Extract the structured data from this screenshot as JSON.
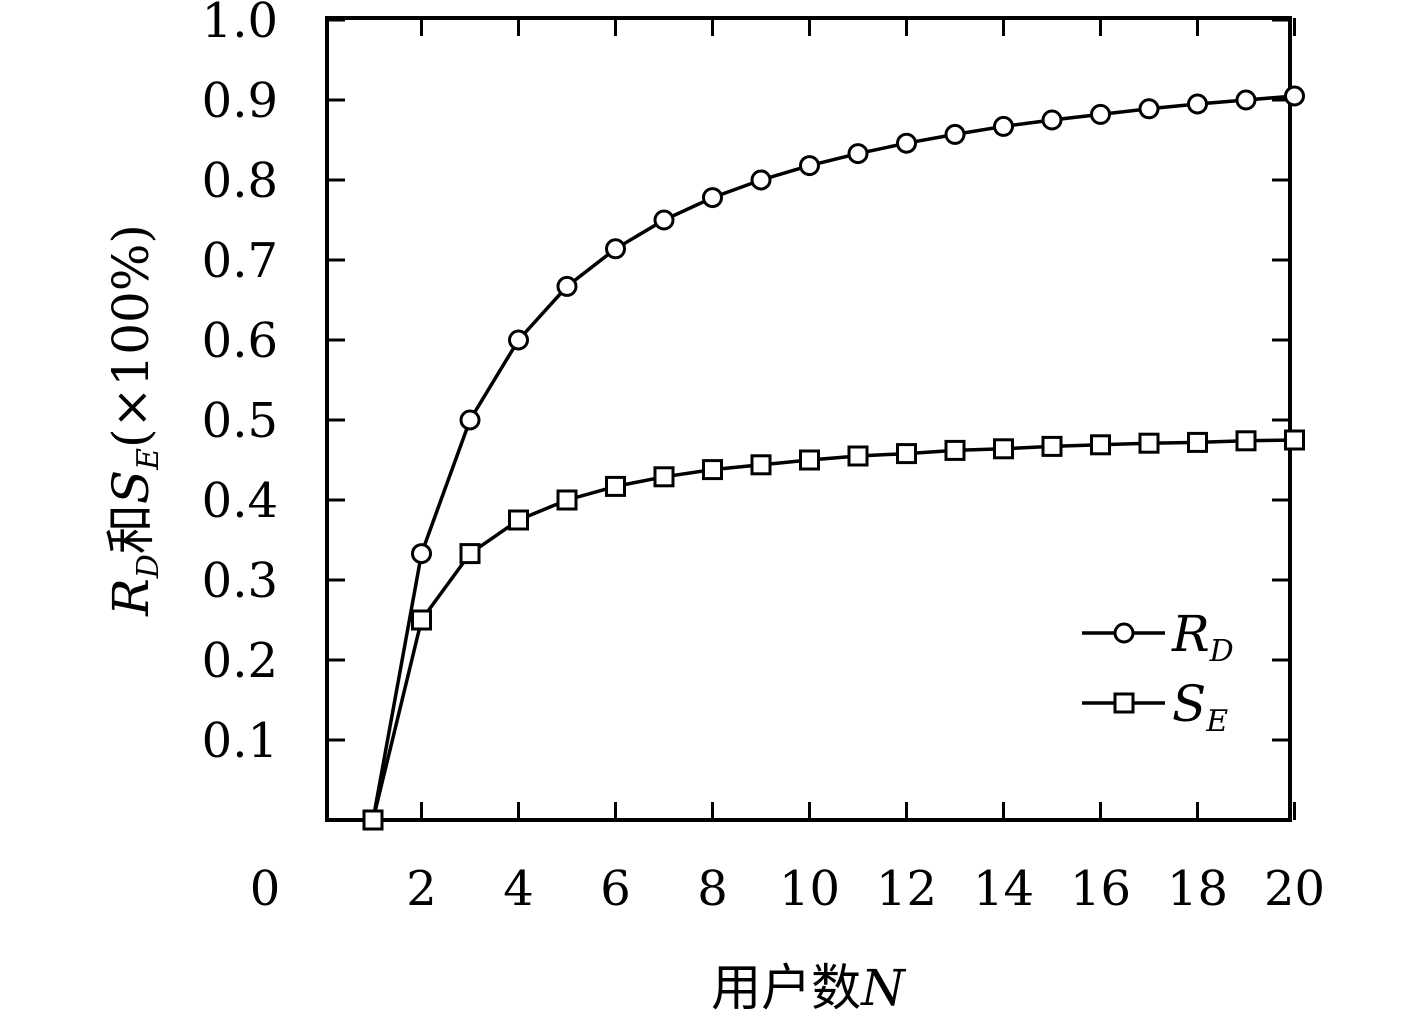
{
  "chart_data": {
    "type": "line",
    "xlabel": "用户数N",
    "xlabel_parts": {
      "text": "用户数",
      "var": "N"
    },
    "ylabel": "RD和SE(×100%)",
    "ylabel_parts": {
      "r": "R",
      "r_sub": "D",
      "and": "和",
      "s": "S",
      "s_sub": "E",
      "tail": "(×100%)"
    },
    "xlim": [
      0,
      20
    ],
    "ylim": [
      0,
      1.0
    ],
    "x_ticks": [
      2,
      4,
      6,
      8,
      10,
      12,
      14,
      16,
      18,
      20
    ],
    "x_origin_label": "0",
    "y_ticks": [
      "0.1",
      "0.2",
      "0.3",
      "0.4",
      "0.5",
      "0.6",
      "0.7",
      "0.8",
      "0.9",
      "1.0"
    ],
    "legend_position": "bottom-right",
    "grid": false,
    "x": [
      1,
      2,
      3,
      4,
      5,
      6,
      7,
      8,
      9,
      10,
      11,
      12,
      13,
      14,
      15,
      16,
      17,
      18,
      19,
      20
    ],
    "series": [
      {
        "name": "RD",
        "name_main": "R",
        "name_sub": "D",
        "marker": "circle",
        "values": [
          0,
          0.333,
          0.5,
          0.6,
          0.667,
          0.714,
          0.75,
          0.778,
          0.8,
          0.818,
          0.833,
          0.846,
          0.857,
          0.867,
          0.875,
          0.882,
          0.889,
          0.895,
          0.9,
          0.905
        ]
      },
      {
        "name": "SE",
        "name_main": "S",
        "name_sub": "E",
        "marker": "square",
        "values": [
          0,
          0.25,
          0.333,
          0.375,
          0.4,
          0.417,
          0.429,
          0.438,
          0.444,
          0.45,
          0.455,
          0.458,
          0.462,
          0.464,
          0.467,
          0.469,
          0.471,
          0.472,
          0.474,
          0.475
        ]
      }
    ]
  }
}
